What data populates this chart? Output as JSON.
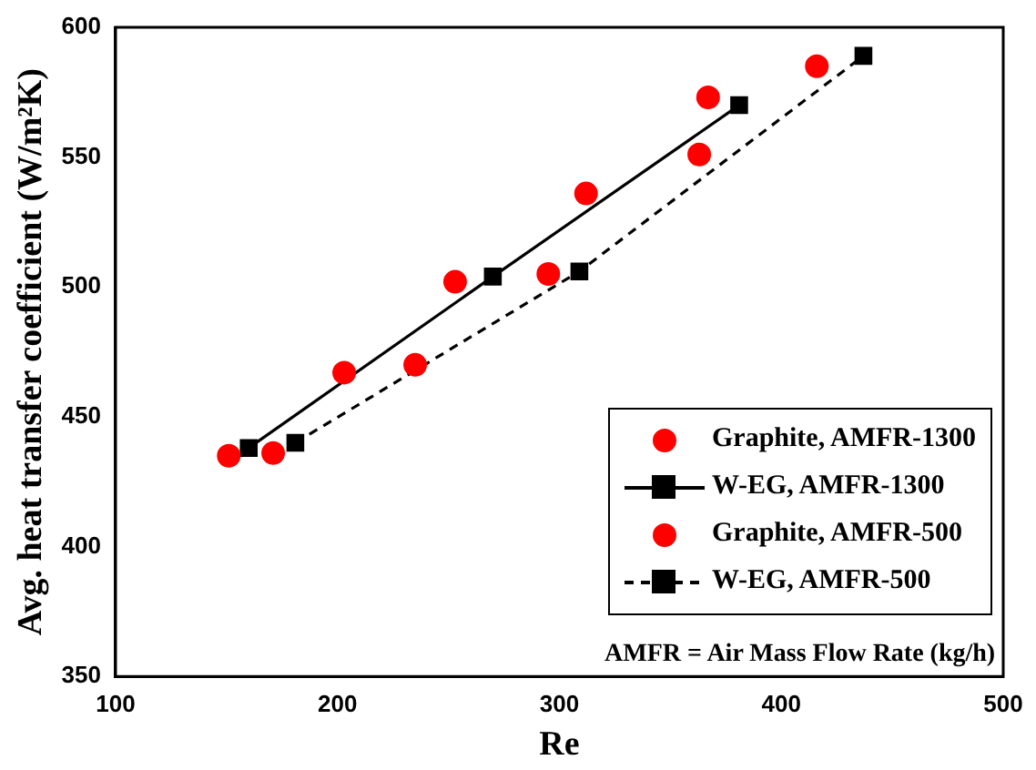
{
  "chart_data": {
    "type": "scatter",
    "xlabel": "Re",
    "ylabel": "Avg. heat transfer coefficient (W/m²K)",
    "xlim": [
      100,
      500
    ],
    "xticks": [
      100,
      200,
      300,
      400,
      500
    ],
    "ylim": [
      350,
      600
    ],
    "yticks": [
      350,
      400,
      450,
      500,
      550,
      600
    ],
    "legend": "bottom right",
    "annotations": [
      "AMFR = Air Mass Flow Rate (kg/h)"
    ],
    "series": [
      {
        "name": "Graphite, AMFR-1300",
        "color": "#ff0000",
        "marker": "circle",
        "x": [
          151,
          203,
          253,
          312,
          367
        ],
        "values": [
          435,
          467,
          502,
          536,
          573
        ]
      },
      {
        "name": "W-EG, AMFR-1300",
        "type": "line",
        "color": "#000000",
        "marker": "square",
        "line_style": "solid",
        "x": [
          160,
          270,
          381
        ],
        "values": [
          438,
          504,
          570
        ]
      },
      {
        "name": "Graphite, AMFR-500",
        "color": "#ff0000",
        "marker": "circle",
        "x": [
          171,
          235,
          295,
          363,
          416
        ],
        "values": [
          436,
          470,
          505,
          551,
          585
        ]
      },
      {
        "name": "W-EG, AMFR-500",
        "type": "line",
        "color": "#000000",
        "marker": "square",
        "line_style": "dashed",
        "x": [
          181,
          309,
          437
        ],
        "values": [
          440,
          506,
          589
        ]
      }
    ]
  }
}
